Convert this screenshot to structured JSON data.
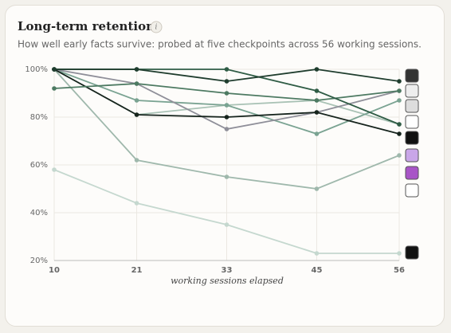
{
  "chart_data": {
    "type": "line",
    "title": "Long-term retention",
    "info": "i",
    "subtitle": "How well early facts survive: probed at five checkpoints across 56 working sessions.",
    "x_label": "working sessions elapsed",
    "x": [
      10,
      21,
      33,
      45,
      56
    ],
    "xlim": [
      10,
      56
    ],
    "xticks": [
      10,
      21,
      33,
      45,
      56
    ],
    "ylim": [
      20,
      100
    ],
    "yticks": [
      {
        "value": 20,
        "label": "20%"
      },
      {
        "value": 40,
        "label": "40%"
      },
      {
        "value": 60,
        "label": "60%"
      },
      {
        "value": 80,
        "label": "80%"
      },
      {
        "value": 100,
        "label": "100%"
      }
    ],
    "grid": true,
    "series": [
      {
        "color": "#1f3d2e",
        "values": [
          100,
          100,
          95,
          100,
          95
        ]
      },
      {
        "color": "#2f5c45",
        "values": [
          100,
          100,
          100,
          91,
          77
        ]
      },
      {
        "color": "#4d7a62",
        "values": [
          92,
          94,
          90,
          87,
          91
        ]
      },
      {
        "color": "#16241d",
        "values": [
          100,
          81,
          80,
          82,
          73
        ]
      },
      {
        "color": "#8f8f99",
        "values": [
          100,
          94,
          75,
          82,
          91
        ]
      },
      {
        "color": "#7aa392",
        "values": [
          100,
          87,
          85,
          73,
          87
        ]
      },
      {
        "color": "#a9c2b5",
        "values": [
          100,
          81,
          85,
          87,
          77
        ]
      },
      {
        "color": "#9fb8ac",
        "values": [
          100,
          62,
          55,
          50,
          64
        ]
      },
      {
        "color": "#c5d8cf",
        "values": [
          58,
          44,
          35,
          23,
          23
        ]
      }
    ]
  }
}
